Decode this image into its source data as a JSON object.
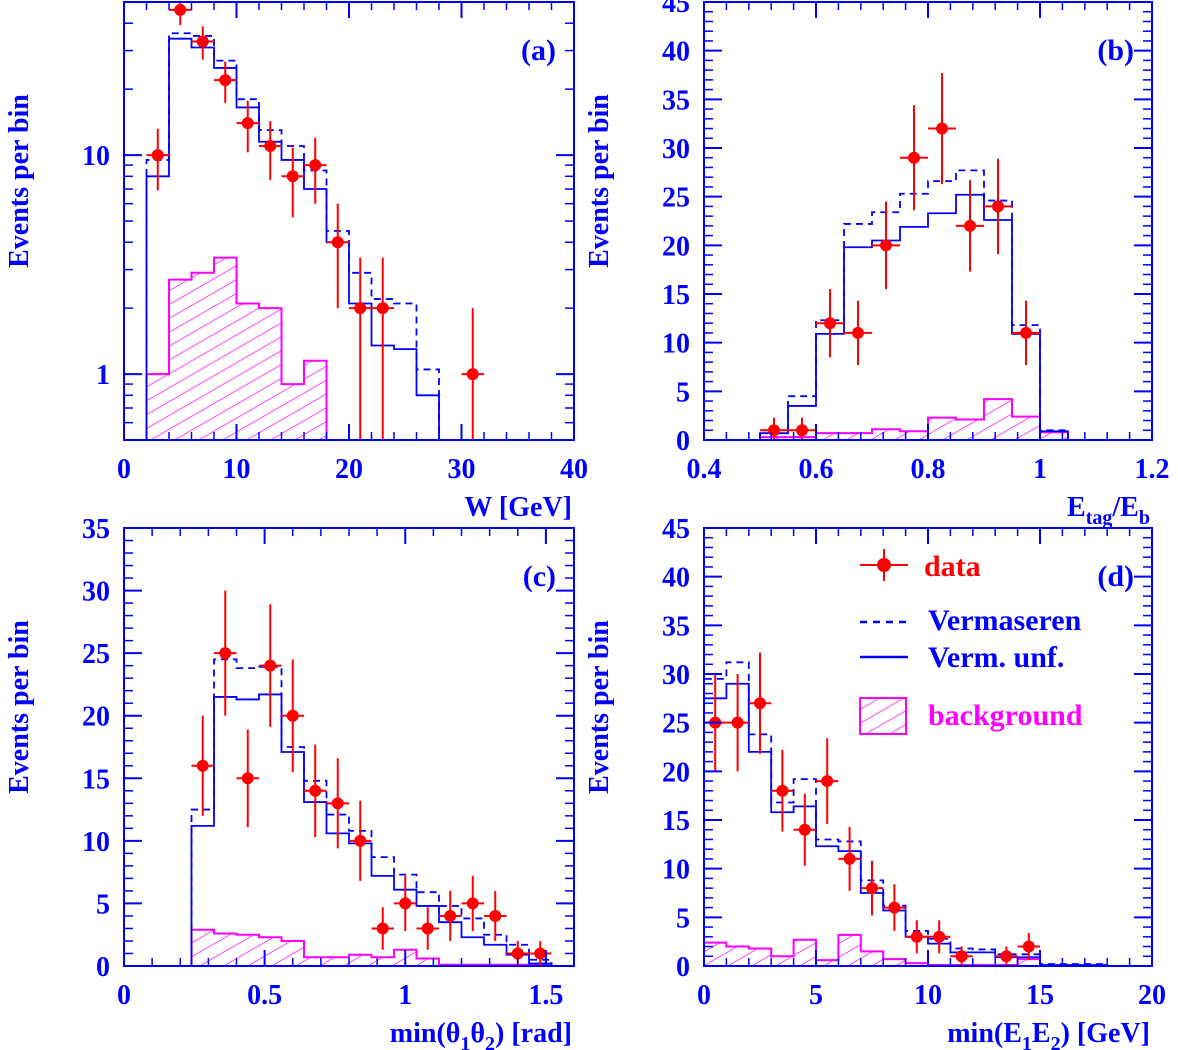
{
  "colors": {
    "axis": "#0000ff",
    "data": "#ff0000",
    "model": "#0000ff",
    "background": "#ff00ff",
    "page": "#ffffff"
  },
  "legend": {
    "data": "data",
    "vermaseren": "Vermaseren",
    "verm_unf": "Verm. unf.",
    "background": "background"
  },
  "chart_data": [
    {
      "id": "a",
      "panel_label": "(a)",
      "type": "bar",
      "xlabel": "W [GeV]",
      "ylabel": "Events per bin",
      "xlim": [
        0,
        40
      ],
      "ylim": [
        0.5,
        50
      ],
      "yscale": "log",
      "xticks": [
        0,
        10,
        20,
        30,
        40
      ],
      "yticks": [
        1,
        10
      ],
      "bin_edges": [
        2,
        4,
        6,
        8,
        10,
        12,
        14,
        16,
        18,
        20,
        22,
        24,
        26,
        28
      ],
      "vermaseren": [
        9.5,
        36,
        35,
        27,
        18,
        13,
        11,
        8.5,
        4.5,
        2.9,
        2.2,
        2.1,
        1.05
      ],
      "verm_unf": [
        8,
        34,
        31,
        25,
        16.5,
        11.5,
        9.5,
        7,
        4,
        2.1,
        1.35,
        1.3,
        0.8
      ],
      "background": {
        "bin_edges": [
          2,
          4,
          6,
          8,
          10,
          12,
          14,
          16,
          18
        ],
        "values": [
          1.0,
          2.7,
          2.9,
          3.4,
          2.1,
          2.0,
          0.9,
          1.15
        ]
      },
      "data_points": {
        "x": [
          3,
          5,
          7,
          9,
          11,
          13,
          15,
          17,
          19,
          21,
          23,
          31
        ],
        "y": [
          10,
          46,
          33,
          22,
          14,
          11,
          8,
          9,
          4,
          2,
          2,
          1
        ],
        "err_low": [
          3.1,
          6.8,
          5.7,
          4.7,
          3.7,
          3.3,
          2.8,
          3.0,
          2.0,
          1.5,
          1.5,
          0.9
        ],
        "err_high": [
          3.2,
          6.8,
          5.7,
          4.7,
          3.7,
          3.3,
          2.8,
          3.0,
          2.0,
          1.4,
          1.4,
          1.0
        ],
        "xerr": 1
      }
    },
    {
      "id": "b",
      "panel_label": "(b)",
      "type": "bar",
      "xlabel": "E",
      "xlabel_sub": "tag",
      "xlabel_mid": "/E",
      "xlabel_sub2": "b",
      "ylabel": "Events per bin",
      "xlim": [
        0.4,
        1.2
      ],
      "ylim": [
        0,
        45
      ],
      "xticks": [
        0.4,
        0.6,
        0.8,
        1,
        1.2
      ],
      "yticks": [
        0,
        5,
        10,
        15,
        20,
        25,
        30,
        35,
        40,
        45
      ],
      "bin_edges": [
        0.5,
        0.55,
        0.6,
        0.65,
        0.7,
        0.75,
        0.8,
        0.85,
        0.9,
        0.95,
        1.0,
        1.05
      ],
      "vermaseren": [
        1.0,
        4.5,
        12.3,
        22.2,
        23.4,
        25.3,
        26.6,
        27.7,
        24.6,
        11.8,
        1.0
      ],
      "verm_unf": [
        0.7,
        3.5,
        10.9,
        19.8,
        20.5,
        21.9,
        23.3,
        25.2,
        22.6,
        10.9,
        0.9
      ],
      "background": {
        "bin_edges": [
          0.5,
          0.55,
          0.6,
          0.65,
          0.7,
          0.75,
          0.8,
          0.85,
          0.9,
          0.95,
          1.0,
          1.05
        ],
        "values": [
          0.3,
          0.3,
          0.7,
          0.7,
          1.1,
          0.9,
          2.3,
          2.1,
          4.2,
          2.4,
          0.8
        ]
      },
      "data_points": {
        "x": [
          0.525,
          0.575,
          0.625,
          0.675,
          0.725,
          0.775,
          0.825,
          0.875,
          0.925,
          0.975
        ],
        "y": [
          1,
          1,
          12,
          11,
          20,
          29,
          32,
          22,
          24,
          11
        ],
        "err_low": [
          1.0,
          1.0,
          3.5,
          3.3,
          4.5,
          5.4,
          5.7,
          4.7,
          4.9,
          3.3
        ],
        "err_high": [
          1.3,
          1.3,
          3.5,
          3.3,
          4.5,
          5.4,
          5.7,
          4.7,
          4.9,
          3.3
        ],
        "xerr": 0.025
      }
    },
    {
      "id": "c",
      "panel_label": "(c)",
      "type": "bar",
      "xlabel": "min(θ",
      "xlabel_sub": "1",
      "xlabel_mid": "θ",
      "xlabel_sub2": "2",
      "xlabel_end": ") [rad]",
      "ylabel": "Events per bin",
      "xlim": [
        0,
        1.6
      ],
      "ylim": [
        0,
        35
      ],
      "xticks": [
        0,
        0.5,
        1,
        1.5
      ],
      "yticks": [
        0,
        5,
        10,
        15,
        20,
        25,
        30,
        35
      ],
      "bin_edges": [
        0.24,
        0.32,
        0.4,
        0.48,
        0.56,
        0.64,
        0.72,
        0.8,
        0.88,
        0.96,
        1.04,
        1.12,
        1.2,
        1.28,
        1.36,
        1.44,
        1.52
      ],
      "vermaseren": [
        12.5,
        24.5,
        23.8,
        23.9,
        17.5,
        14.8,
        12.1,
        10.8,
        8.7,
        7.3,
        5.9,
        4.8,
        3.8,
        2.5,
        1.7,
        0.5
      ],
      "verm_unf": [
        11.2,
        21.5,
        21.3,
        21.7,
        17.1,
        13.1,
        10.6,
        9.8,
        7.2,
        6.1,
        4.8,
        3.5,
        2.3,
        1.7,
        0.9,
        0.2
      ],
      "background": {
        "bin_edges": [
          0.24,
          0.32,
          0.4,
          0.48,
          0.56,
          0.64,
          0.72,
          0.8,
          0.88,
          0.96,
          1.04,
          1.12,
          1.2,
          1.28,
          1.36,
          1.44,
          1.52
        ],
        "values": [
          2.9,
          2.6,
          2.5,
          2.3,
          2.0,
          0.7,
          0.7,
          0.9,
          0.7,
          1.3,
          0.6,
          0.1,
          0.1,
          0.1,
          0.1,
          0.1
        ]
      },
      "data_points": {
        "x": [
          0.28,
          0.36,
          0.44,
          0.52,
          0.6,
          0.68,
          0.76,
          0.84,
          0.92,
          1.0,
          1.08,
          1.16,
          1.24,
          1.32,
          1.4,
          1.48
        ],
        "y": [
          16,
          25,
          15,
          24,
          20,
          14,
          13,
          10,
          3,
          5,
          3,
          4,
          5,
          4,
          1,
          1
        ],
        "err_low": [
          4.0,
          5.0,
          3.9,
          4.9,
          4.5,
          3.7,
          3.6,
          3.2,
          1.7,
          2.2,
          1.7,
          2.0,
          2.2,
          2.0,
          1.0,
          1.0
        ],
        "err_high": [
          4.0,
          5.0,
          3.9,
          4.9,
          4.5,
          3.7,
          3.6,
          3.2,
          1.7,
          2.2,
          1.7,
          2.0,
          2.2,
          2.0,
          1.0,
          1.0
        ],
        "xerr": 0.04
      }
    },
    {
      "id": "d",
      "panel_label": "(d)",
      "type": "bar",
      "xlabel": "min(E",
      "xlabel_sub": "1",
      "xlabel_mid": "E",
      "xlabel_sub2": "2",
      "xlabel_end": ") [GeV]",
      "ylabel": "Events per bin",
      "xlim": [
        0,
        20
      ],
      "ylim": [
        0,
        45
      ],
      "xticks": [
        0,
        5,
        10,
        15,
        20
      ],
      "yticks": [
        0,
        5,
        10,
        15,
        20,
        25,
        30,
        35,
        40,
        45
      ],
      "bin_edges": [
        0,
        1,
        2,
        3,
        4,
        5,
        6,
        7,
        8,
        9,
        10,
        11,
        12,
        13,
        14,
        15,
        16,
        17,
        18
      ],
      "vermaseren": [
        29.5,
        31.2,
        23.8,
        16.8,
        19.2,
        13.0,
        12.8,
        8.8,
        6.2,
        3.6,
        2.8,
        1.8,
        1.7,
        1.2,
        1.2,
        0.2,
        0.2,
        0.2
      ],
      "verm_unf": [
        27.5,
        29.0,
        22.0,
        15.8,
        16.4,
        12.3,
        11.8,
        7.5,
        5.7,
        3.0,
        2.3,
        1.4,
        1.4,
        0.9,
        0.9,
        0.1,
        0.1,
        0.1
      ],
      "background": {
        "bin_edges": [
          0,
          1,
          2,
          3,
          4,
          5,
          6,
          7,
          8,
          9,
          10,
          11,
          12,
          13,
          14,
          15
        ],
        "values": [
          2.4,
          2.0,
          1.8,
          1.0,
          2.7,
          0.6,
          3.2,
          1.5,
          0.7,
          0.3,
          0.1,
          0.1,
          0.1,
          0.1,
          0.7
        ]
      },
      "data_points": {
        "x": [
          0.5,
          1.5,
          2.5,
          3.5,
          4.5,
          5.5,
          6.5,
          7.5,
          8.5,
          9.5,
          10.5,
          11.5,
          13.5,
          14.5
        ],
        "y": [
          25,
          25,
          27,
          18,
          14,
          19,
          11,
          8,
          6,
          3,
          3,
          1,
          1,
          2
        ],
        "err_low": [
          5.0,
          5.0,
          5.2,
          4.2,
          3.7,
          4.4,
          3.3,
          2.8,
          2.4,
          1.7,
          1.7,
          1.0,
          1.0,
          1.4
        ],
        "err_high": [
          5.0,
          5.0,
          5.2,
          4.2,
          3.7,
          4.4,
          3.3,
          2.8,
          2.4,
          1.7,
          1.7,
          1.0,
          1.0,
          1.4
        ],
        "xerr": 0.5
      }
    }
  ]
}
